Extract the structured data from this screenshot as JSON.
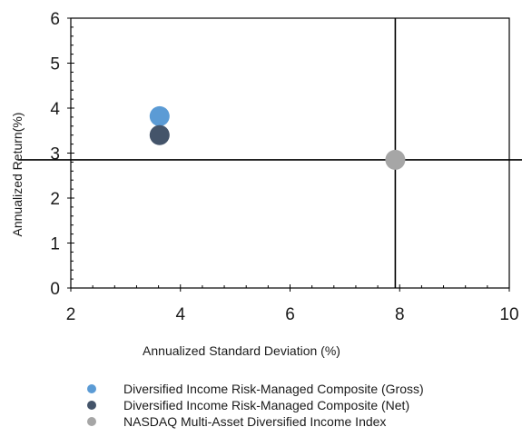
{
  "chart_data": {
    "type": "scatter",
    "xlabel": "Annualized Standard Deviation (%)",
    "ylabel": "Annualized Return(%)",
    "xlim": [
      2,
      10
    ],
    "ylim": [
      0,
      6
    ],
    "xticks": [
      2,
      4,
      6,
      8,
      10
    ],
    "yticks": [
      0,
      1,
      2,
      3,
      4,
      5,
      6
    ],
    "reference_lines": {
      "x": 7.92,
      "y": 2.85
    },
    "grid": false,
    "legend_position": "bottom",
    "series": [
      {
        "name": "Diversified Income Risk-Managed Composite (Gross)",
        "color": "#5b9bd5",
        "points": [
          {
            "x": 3.62,
            "y": 3.82
          }
        ]
      },
      {
        "name": "Diversified Income Risk-Managed Composite (Net)",
        "color": "#44546a",
        "points": [
          {
            "x": 3.62,
            "y": 3.4
          }
        ]
      },
      {
        "name": "NASDAQ Multi-Asset Diversified Income Index",
        "color": "#a6a6a6",
        "points": [
          {
            "x": 7.92,
            "y": 2.85
          }
        ]
      }
    ]
  }
}
